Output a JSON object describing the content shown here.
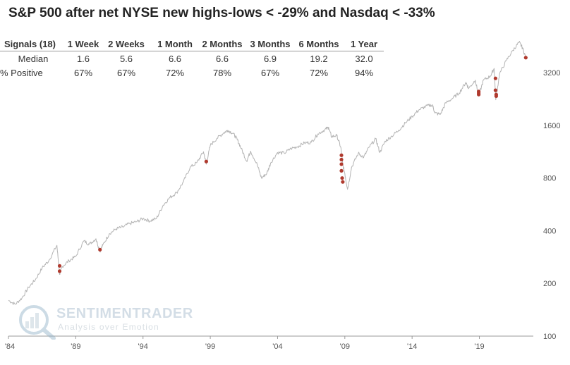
{
  "title": "S&P 500 after net NYSE new highs-lows < -29% and Nasdaq < -33%",
  "stats_table": {
    "headers": [
      "Signals (18)",
      "1 Week",
      "2 Weeks",
      "1 Month",
      "2 Months",
      "3 Months",
      "6 Months",
      "1 Year"
    ],
    "median": {
      "label": "Median",
      "values": [
        "1.6",
        "5.6",
        "6.6",
        "6.6",
        "6.9",
        "19.2",
        "32.0"
      ]
    },
    "positive": {
      "label": "% Positive",
      "values": [
        "67%",
        "67%",
        "72%",
        "78%",
        "67%",
        "72%",
        "94%"
      ]
    }
  },
  "watermark": {
    "brand": "SENTIMENTRADER",
    "tagline": "Analysis over Emotion"
  },
  "chart_data": {
    "type": "line",
    "title": "S&P 500 after net NYSE new highs-lows < -29% and Nasdaq < -33%",
    "xlabel": "",
    "ylabel": "",
    "y_scale": "log",
    "ylim": [
      100,
      5000
    ],
    "xlim": [
      1984,
      2022.8
    ],
    "x_tick_labels": [
      "'84",
      "'89",
      "'94",
      "'99",
      "'04",
      "'09",
      "'14",
      "'19"
    ],
    "x_tick_years": [
      1984,
      1989,
      1994,
      1999,
      2004,
      2009,
      2014,
      2019
    ],
    "y_ticks": [
      100,
      200,
      400,
      800,
      1600,
      3200
    ],
    "series_name": "S&P 500",
    "series_color": "#b3b3b3",
    "signal_color": "#b03a2e",
    "series": [
      {
        "x": 1984.0,
        "y": 160
      },
      {
        "x": 1984.5,
        "y": 152
      },
      {
        "x": 1985.0,
        "y": 165
      },
      {
        "x": 1985.5,
        "y": 190
      },
      {
        "x": 1986.0,
        "y": 210
      },
      {
        "x": 1986.5,
        "y": 245
      },
      {
        "x": 1987.0,
        "y": 270
      },
      {
        "x": 1987.6,
        "y": 330
      },
      {
        "x": 1987.8,
        "y": 225
      },
      {
        "x": 1988.0,
        "y": 250
      },
      {
        "x": 1988.5,
        "y": 270
      },
      {
        "x": 1989.0,
        "y": 285
      },
      {
        "x": 1989.6,
        "y": 350
      },
      {
        "x": 1990.0,
        "y": 335
      },
      {
        "x": 1990.5,
        "y": 360
      },
      {
        "x": 1990.8,
        "y": 305
      },
      {
        "x": 1991.0,
        "y": 330
      },
      {
        "x": 1991.5,
        "y": 385
      },
      {
        "x": 1992.0,
        "y": 410
      },
      {
        "x": 1992.5,
        "y": 420
      },
      {
        "x": 1993.0,
        "y": 440
      },
      {
        "x": 1993.5,
        "y": 450
      },
      {
        "x": 1994.0,
        "y": 470
      },
      {
        "x": 1994.5,
        "y": 455
      },
      {
        "x": 1995.0,
        "y": 470
      },
      {
        "x": 1995.5,
        "y": 560
      },
      {
        "x": 1996.0,
        "y": 620
      },
      {
        "x": 1996.5,
        "y": 660
      },
      {
        "x": 1997.0,
        "y": 760
      },
      {
        "x": 1997.5,
        "y": 920
      },
      {
        "x": 1998.0,
        "y": 980
      },
      {
        "x": 1998.5,
        "y": 1130
      },
      {
        "x": 1998.7,
        "y": 960
      },
      {
        "x": 1999.0,
        "y": 1230
      },
      {
        "x": 1999.5,
        "y": 1350
      },
      {
        "x": 2000.0,
        "y": 1450
      },
      {
        "x": 2000.3,
        "y": 1500
      },
      {
        "x": 2000.7,
        "y": 1440
      },
      {
        "x": 2001.0,
        "y": 1330
      },
      {
        "x": 2001.3,
        "y": 1180
      },
      {
        "x": 2001.7,
        "y": 1000
      },
      {
        "x": 2002.0,
        "y": 1140
      },
      {
        "x": 2002.5,
        "y": 950
      },
      {
        "x": 2002.8,
        "y": 800
      },
      {
        "x": 2003.2,
        "y": 850
      },
      {
        "x": 2003.5,
        "y": 980
      },
      {
        "x": 2004.0,
        "y": 1120
      },
      {
        "x": 2004.5,
        "y": 1110
      },
      {
        "x": 2005.0,
        "y": 1180
      },
      {
        "x": 2005.5,
        "y": 1210
      },
      {
        "x": 2006.0,
        "y": 1270
      },
      {
        "x": 2006.5,
        "y": 1280
      },
      {
        "x": 2007.0,
        "y": 1430
      },
      {
        "x": 2007.5,
        "y": 1510
      },
      {
        "x": 2007.8,
        "y": 1560
      },
      {
        "x": 2008.0,
        "y": 1380
      },
      {
        "x": 2008.4,
        "y": 1400
      },
      {
        "x": 2008.7,
        "y": 1200
      },
      {
        "x": 2008.85,
        "y": 950
      },
      {
        "x": 2009.0,
        "y": 850
      },
      {
        "x": 2009.2,
        "y": 690
      },
      {
        "x": 2009.5,
        "y": 920
      },
      {
        "x": 2010.0,
        "y": 1110
      },
      {
        "x": 2010.4,
        "y": 1050
      },
      {
        "x": 2010.8,
        "y": 1200
      },
      {
        "x": 2011.3,
        "y": 1340
      },
      {
        "x": 2011.6,
        "y": 1120
      },
      {
        "x": 2012.0,
        "y": 1300
      },
      {
        "x": 2012.5,
        "y": 1390
      },
      {
        "x": 2013.0,
        "y": 1500
      },
      {
        "x": 2013.5,
        "y": 1650
      },
      {
        "x": 2014.0,
        "y": 1800
      },
      {
        "x": 2014.5,
        "y": 1960
      },
      {
        "x": 2015.0,
        "y": 2050
      },
      {
        "x": 2015.5,
        "y": 2100
      },
      {
        "x": 2015.7,
        "y": 1880
      },
      {
        "x": 2016.1,
        "y": 1850
      },
      {
        "x": 2016.5,
        "y": 2150
      },
      {
        "x": 2017.0,
        "y": 2280
      },
      {
        "x": 2017.5,
        "y": 2450
      },
      {
        "x": 2018.0,
        "y": 2820
      },
      {
        "x": 2018.2,
        "y": 2600
      },
      {
        "x": 2018.7,
        "y": 2900
      },
      {
        "x": 2018.95,
        "y": 2350
      },
      {
        "x": 2019.3,
        "y": 2900
      },
      {
        "x": 2019.8,
        "y": 3050
      },
      {
        "x": 2020.1,
        "y": 3380
      },
      {
        "x": 2020.22,
        "y": 2240
      },
      {
        "x": 2020.5,
        "y": 3150
      },
      {
        "x": 2021.0,
        "y": 3750
      },
      {
        "x": 2021.5,
        "y": 4300
      },
      {
        "x": 2021.95,
        "y": 4780
      },
      {
        "x": 2022.2,
        "y": 4450
      },
      {
        "x": 2022.45,
        "y": 3900
      }
    ],
    "signals": [
      {
        "x": 1987.8,
        "y": 252
      },
      {
        "x": 1987.8,
        "y": 235
      },
      {
        "x": 1990.8,
        "y": 312
      },
      {
        "x": 1998.7,
        "y": 995
      },
      {
        "x": 2008.75,
        "y": 1080
      },
      {
        "x": 2008.75,
        "y": 1020
      },
      {
        "x": 2008.75,
        "y": 960
      },
      {
        "x": 2008.75,
        "y": 880
      },
      {
        "x": 2008.8,
        "y": 800
      },
      {
        "x": 2008.85,
        "y": 760
      },
      {
        "x": 2018.95,
        "y": 2500
      },
      {
        "x": 2018.95,
        "y": 2450
      },
      {
        "x": 2018.95,
        "y": 2400
      },
      {
        "x": 2020.2,
        "y": 2970
      },
      {
        "x": 2020.2,
        "y": 2540
      },
      {
        "x": 2020.25,
        "y": 2400
      },
      {
        "x": 2020.25,
        "y": 2350
      },
      {
        "x": 2022.45,
        "y": 3900
      }
    ]
  }
}
